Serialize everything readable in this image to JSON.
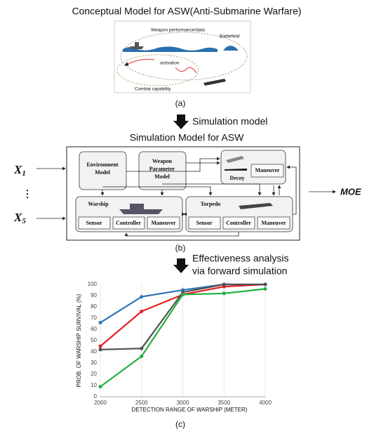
{
  "panel_a": {
    "title": "Conceptual Model for ASW(Anti-Submarine Warfare)",
    "labels": {
      "weapon": "Weapon performance/data",
      "battlefield": "Battlefield",
      "activation": "activation",
      "combat": "Combat capability"
    },
    "caption": "(a)"
  },
  "step_1": {
    "label": "Simulation model"
  },
  "panel_b": {
    "title": "Simulation Model for ASW",
    "inputs": {
      "first": {
        "symbol": "X",
        "subscript": "1"
      },
      "ellipsis": "⋮",
      "last": {
        "symbol": "X",
        "subscript": "5"
      }
    },
    "output": "MOE",
    "nodes": {
      "environment": [
        "Environment",
        "Model"
      ],
      "weapon_parameter": [
        "Weapon",
        "Parameter",
        "Model"
      ],
      "decoy": {
        "label": "Decoy",
        "parts": [
          "Maneuver"
        ]
      },
      "warship": {
        "label": "Warship",
        "parts": [
          "Sensor",
          "Controller",
          "Maneuver"
        ]
      },
      "torpedo": {
        "label": "Torpedo",
        "parts": [
          "Sensor",
          "Controller",
          "Maneuver"
        ]
      }
    },
    "caption": "(b)"
  },
  "step_2": {
    "lines": [
      "Effectiveness analysis",
      "via forward simulation"
    ]
  },
  "chart_data": {
    "type": "line",
    "x": [
      2000,
      2500,
      3000,
      3500,
      4000
    ],
    "series": [
      {
        "color": "#2e75b6",
        "values": [
          66,
          89,
          95,
          100,
          100
        ]
      },
      {
        "color": "#e02020",
        "values": [
          45,
          76,
          91,
          98,
          100
        ]
      },
      {
        "color": "#505050",
        "values": [
          42,
          43,
          93,
          100,
          100
        ]
      },
      {
        "color": "#22b040",
        "values": [
          9,
          36,
          91,
          92,
          96
        ]
      }
    ],
    "xlim": [
      2000,
      4000
    ],
    "xticks": [
      2000,
      2500,
      3000,
      3500,
      4000
    ],
    "ylim": [
      0,
      100
    ],
    "yticks": [
      0,
      10,
      20,
      30,
      40,
      50,
      60,
      70,
      80,
      90,
      100
    ],
    "xlabel": "DETECTION RANGE OF WARSHIP (METER)",
    "ylabel": "PROB. OF WARSHIP SURVIVAL (%)",
    "grid": true
  },
  "panel_c": {
    "caption": "(c)"
  }
}
